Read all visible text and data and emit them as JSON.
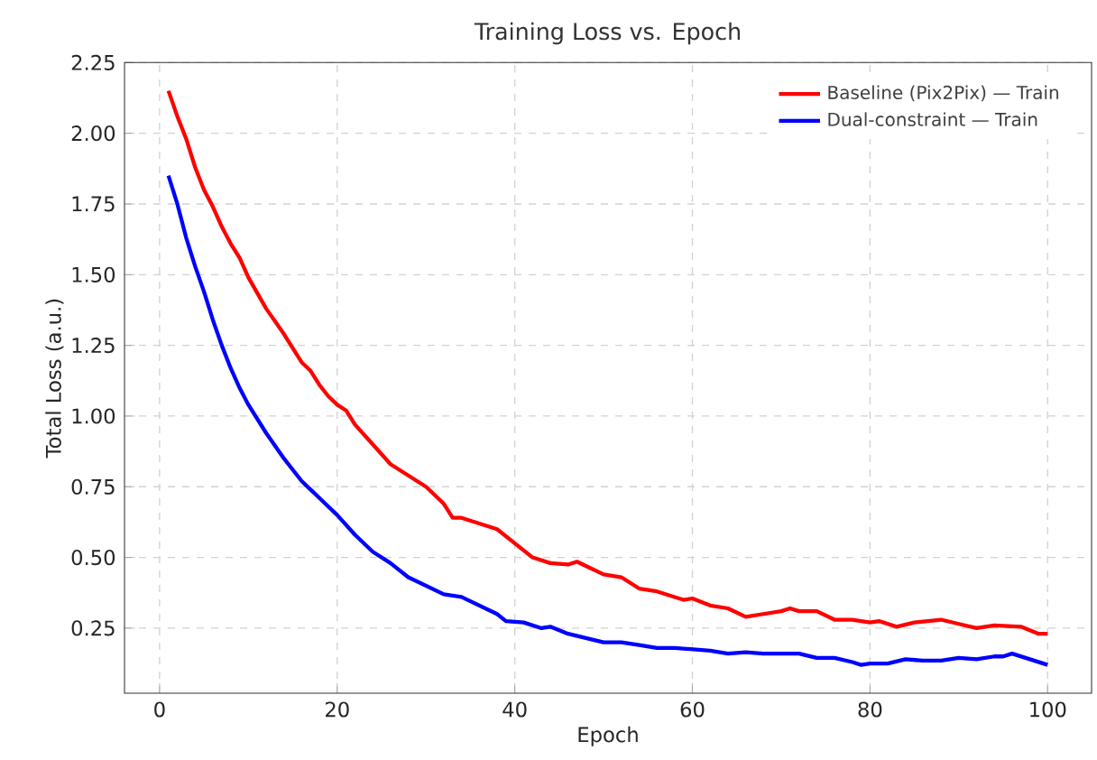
{
  "chart_data": {
    "type": "line",
    "title": "Training Loss vs. Epoch",
    "xlabel": "Epoch",
    "ylabel": "Total Loss (a.u.)",
    "xlim": [
      -3.95,
      104.95
    ],
    "ylim": [
      0.02,
      2.25
    ],
    "xticks": [
      0,
      20,
      40,
      60,
      80,
      100
    ],
    "yticks": [
      {
        "value": 0.25,
        "label": "0.25"
      },
      {
        "value": 0.5,
        "label": "0.50"
      },
      {
        "value": 0.75,
        "label": "0.75"
      },
      {
        "value": 1.0,
        "label": "1.00"
      },
      {
        "value": 1.25,
        "label": "1.25"
      },
      {
        "value": 1.5,
        "label": "1.50"
      },
      {
        "value": 1.75,
        "label": "1.75"
      },
      {
        "value": 2.0,
        "label": "2.00"
      },
      {
        "value": 2.25,
        "label": "2.25"
      }
    ],
    "grid": true,
    "legend": "top right",
    "line_style": "solid",
    "marker": "none",
    "series": [
      {
        "name": "Baseline (Pix2Pix) — Train",
        "color": "#ff0000",
        "x": [
          1,
          2,
          3,
          4,
          5,
          6,
          7,
          8,
          9,
          10,
          12,
          14,
          16,
          17,
          18,
          19,
          20,
          21,
          22,
          24,
          26,
          28,
          30,
          32,
          33,
          34,
          36,
          38,
          40,
          42,
          44,
          46,
          47,
          48,
          50,
          52,
          54,
          56,
          58,
          59,
          60,
          62,
          64,
          66,
          68,
          70,
          71,
          72,
          74,
          76,
          78,
          80,
          81,
          83,
          85,
          88,
          90,
          92,
          94,
          97,
          99,
          100
        ],
        "values": [
          2.15,
          2.06,
          1.98,
          1.88,
          1.8,
          1.74,
          1.67,
          1.61,
          1.56,
          1.49,
          1.38,
          1.29,
          1.19,
          1.16,
          1.11,
          1.07,
          1.04,
          1.02,
          0.97,
          0.9,
          0.83,
          0.79,
          0.75,
          0.69,
          0.64,
          0.64,
          0.62,
          0.6,
          0.55,
          0.5,
          0.48,
          0.475,
          0.485,
          0.47,
          0.44,
          0.43,
          0.39,
          0.38,
          0.36,
          0.35,
          0.355,
          0.33,
          0.32,
          0.29,
          0.3,
          0.31,
          0.32,
          0.31,
          0.31,
          0.28,
          0.28,
          0.27,
          0.275,
          0.255,
          0.27,
          0.28,
          0.265,
          0.25,
          0.26,
          0.255,
          0.23,
          0.23
        ]
      },
      {
        "name": "Dual-constraint — Train",
        "color": "#0000ff",
        "x": [
          1,
          2,
          3,
          4,
          5,
          6,
          7,
          8,
          9,
          10,
          12,
          14,
          16,
          17,
          18,
          20,
          22,
          24,
          26,
          28,
          30,
          32,
          34,
          36,
          38,
          39,
          41,
          43,
          44,
          46,
          48,
          50,
          52,
          54,
          56,
          58,
          60,
          62,
          64,
          66,
          68,
          70,
          72,
          74,
          76,
          78,
          79,
          80,
          82,
          84,
          86,
          88,
          90,
          92,
          94,
          95,
          96,
          98,
          100
        ],
        "values": [
          1.85,
          1.75,
          1.63,
          1.53,
          1.44,
          1.34,
          1.25,
          1.17,
          1.1,
          1.04,
          0.94,
          0.85,
          0.77,
          0.74,
          0.71,
          0.65,
          0.58,
          0.52,
          0.48,
          0.43,
          0.4,
          0.37,
          0.36,
          0.33,
          0.3,
          0.275,
          0.27,
          0.25,
          0.255,
          0.23,
          0.215,
          0.2,
          0.2,
          0.19,
          0.18,
          0.18,
          0.175,
          0.17,
          0.16,
          0.165,
          0.16,
          0.16,
          0.16,
          0.145,
          0.145,
          0.13,
          0.12,
          0.125,
          0.125,
          0.14,
          0.135,
          0.135,
          0.145,
          0.14,
          0.15,
          0.15,
          0.16,
          0.14,
          0.12
        ]
      }
    ]
  }
}
